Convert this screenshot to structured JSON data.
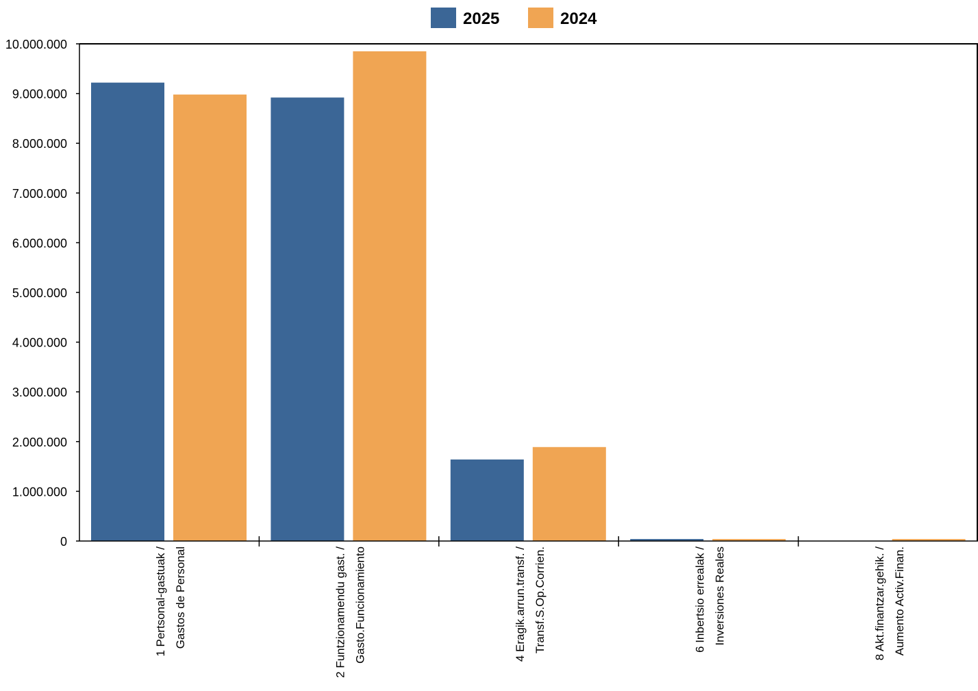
{
  "chart_data": {
    "type": "bar",
    "title": "",
    "xlabel": "",
    "ylabel": "",
    "ylim": [
      0,
      10000000
    ],
    "yticks": [
      0,
      1000000,
      2000000,
      3000000,
      4000000,
      5000000,
      6000000,
      7000000,
      8000000,
      9000000,
      10000000
    ],
    "ytick_labels": [
      "0",
      "1.000.000",
      "2.000.000",
      "3.000.000",
      "4.000.000",
      "5.000.000",
      "6.000.000",
      "7.000.000",
      "8.000.000",
      "9.000.000",
      "10.000.000"
    ],
    "categories": [
      [
        "1 Pertsonal-gastuak /",
        "Gastos de Personal"
      ],
      [
        "2 Funtzionamendu gast. /",
        "Gasto.Funcionamiento"
      ],
      [
        "4 Eragik.arrun.transf. /",
        "Transf.S.Op.Corrien."
      ],
      [
        "6 Inbertsio errealak /",
        "Inversiones Reales"
      ],
      [
        "8 Akt.finantzar.gehik. /",
        "Aumento Activ.Finan."
      ]
    ],
    "series": [
      {
        "name": "2025",
        "color": "#3b6696",
        "values": [
          9220000,
          8920000,
          1640000,
          40000,
          0
        ]
      },
      {
        "name": "2024",
        "color": "#f0a553",
        "values": [
          8980000,
          9850000,
          1890000,
          40000,
          40000
        ]
      }
    ],
    "legend_position": "top-center",
    "grid": false
  }
}
